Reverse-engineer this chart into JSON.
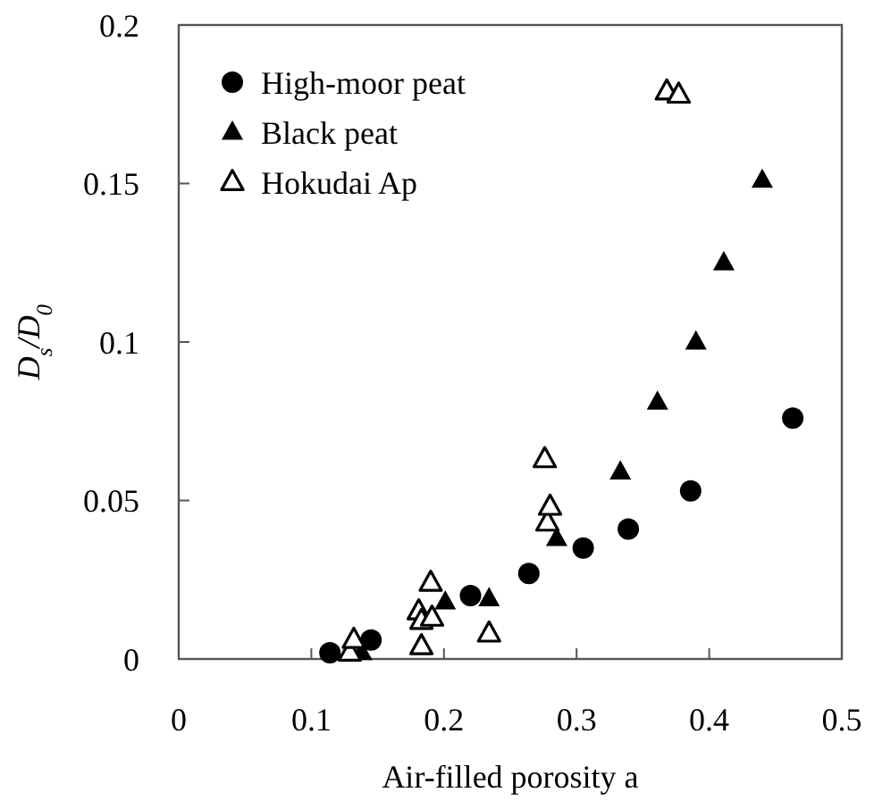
{
  "chart_data": {
    "type": "scatter",
    "xlabel": "Air-filled porosity a",
    "ylabel": "D$_{s}$/D$_{0}$",
    "xlim": [
      0,
      0.5
    ],
    "ylim": [
      0,
      0.2
    ],
    "xticks": [
      0,
      0.1,
      0.2,
      0.3,
      0.4,
      0.5
    ],
    "yticks": [
      0,
      0.05,
      0.1,
      0.15,
      0.2
    ],
    "grid": false,
    "legend": "top left",
    "series": [
      {
        "name": "High-moor peat",
        "color": "#000000",
        "marker": "circle",
        "x": [
          0.114,
          0.145,
          0.22,
          0.264,
          0.305,
          0.339,
          0.386,
          0.463
        ],
        "values": [
          0.002,
          0.006,
          0.02,
          0.027,
          0.035,
          0.041,
          0.053,
          0.076
        ]
      },
      {
        "name": "Black peat",
        "color": "#000000",
        "marker": "triangle",
        "x": [
          0.138,
          0.201,
          0.234,
          0.285,
          0.333,
          0.361,
          0.39,
          0.411,
          0.44
        ],
        "values": [
          0.002,
          0.018,
          0.019,
          0.038,
          0.059,
          0.081,
          0.1,
          0.125,
          0.151
        ]
      },
      {
        "name": "Hokudai Ap",
        "color": "#000000",
        "marker": "triangle-open",
        "x": [
          0.129,
          0.132,
          0.181,
          0.183,
          0.183,
          0.19,
          0.191,
          0.234,
          0.276,
          0.278,
          0.28,
          0.368,
          0.377
        ],
        "values": [
          0.002,
          0.006,
          0.015,
          0.012,
          0.004,
          0.024,
          0.013,
          0.008,
          0.063,
          0.043,
          0.048,
          0.179,
          0.178
        ]
      }
    ]
  }
}
